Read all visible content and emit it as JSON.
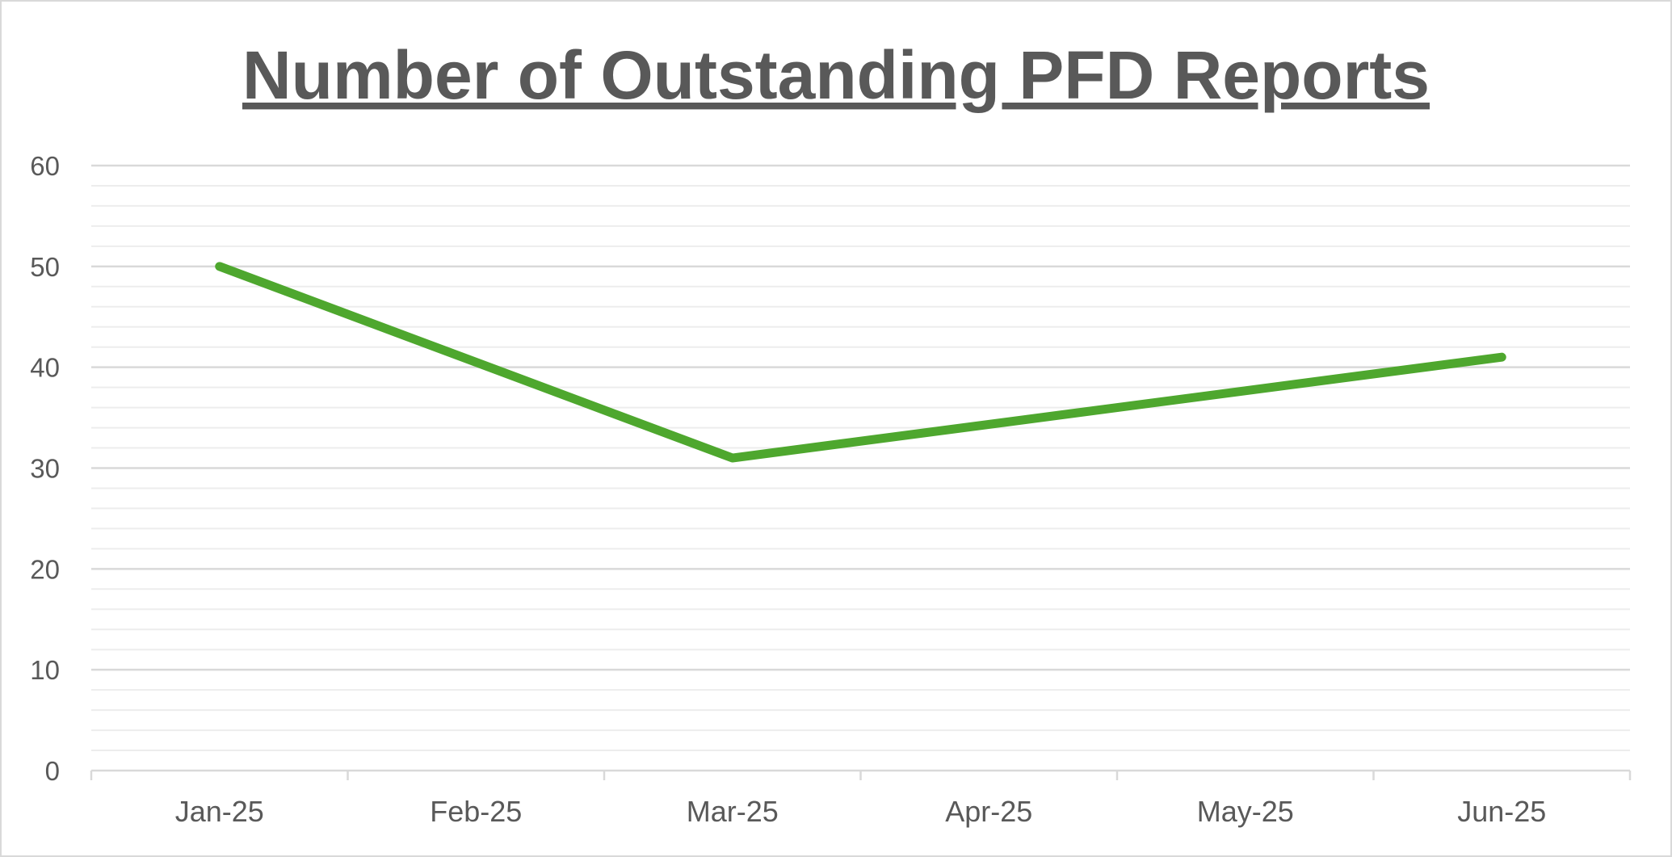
{
  "chart_data": {
    "type": "line",
    "title": "Number of Outstanding PFD Reports",
    "xlabel": "",
    "ylabel": "",
    "categories": [
      "Jan-25",
      "Feb-25",
      "Mar-25",
      "Apr-25",
      "May-25",
      "Jun-25"
    ],
    "series": [
      {
        "name": "Outstanding PFD Reports",
        "x": [
          "Jan-25",
          "Mar-25",
          "Jun-25"
        ],
        "values": [
          50,
          31,
          41
        ],
        "color": "#4ea72e"
      }
    ],
    "ylim": [
      0,
      60
    ],
    "y_ticks": [
      "0",
      "10",
      "20",
      "30",
      "40",
      "50",
      "60"
    ],
    "grid": true,
    "legend": "none"
  }
}
